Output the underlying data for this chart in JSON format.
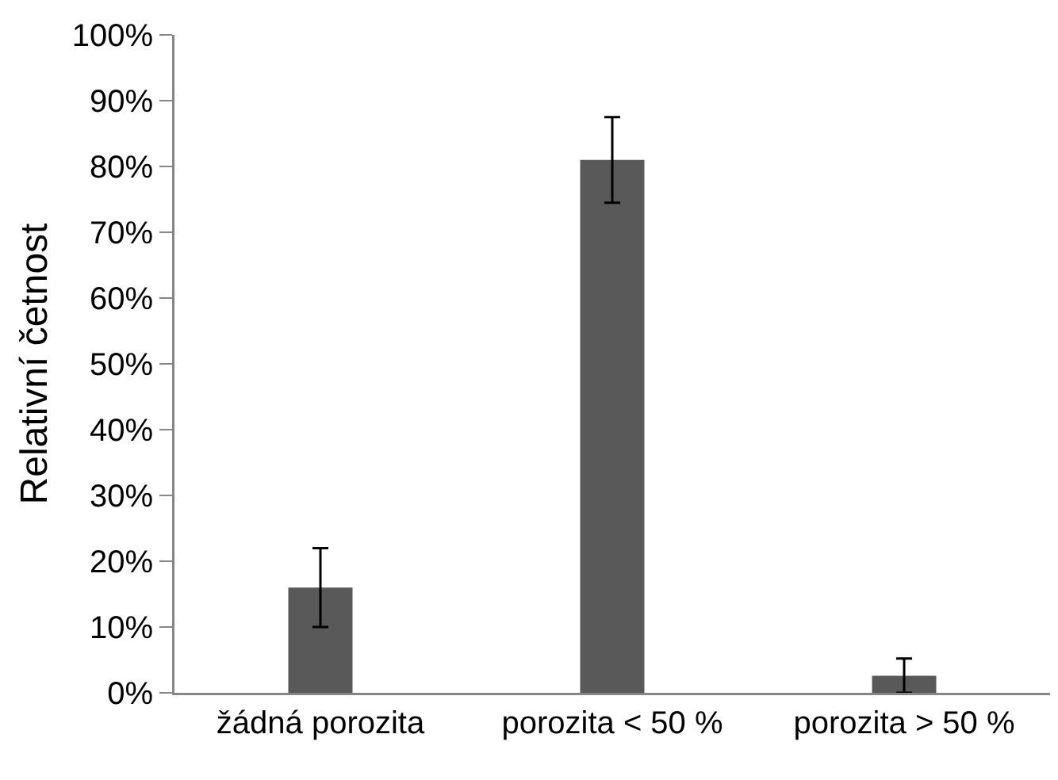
{
  "chart_data": {
    "type": "bar",
    "ylabel": "Relativní četnost",
    "categories": [
      "žádná porozita",
      "porozita < 50 %",
      "porozita > 50 %"
    ],
    "values": [
      16,
      81,
      2.6
    ],
    "color": "#595959",
    "errors": [
      6,
      6.5,
      2.6
    ],
    "ylim": [
      0,
      100
    ],
    "yticks": [
      {
        "value": 0,
        "label": "0%"
      },
      {
        "value": 10,
        "label": "10%"
      },
      {
        "value": 20,
        "label": "20%"
      },
      {
        "value": 30,
        "label": "30%"
      },
      {
        "value": 40,
        "label": "40%"
      },
      {
        "value": 50,
        "label": "50%"
      },
      {
        "value": 60,
        "label": "60%"
      },
      {
        "value": 70,
        "label": "70%"
      },
      {
        "value": 80,
        "label": "80%"
      },
      {
        "value": 90,
        "label": "90%"
      },
      {
        "value": 100,
        "label": "100%"
      }
    ],
    "grid": false
  }
}
